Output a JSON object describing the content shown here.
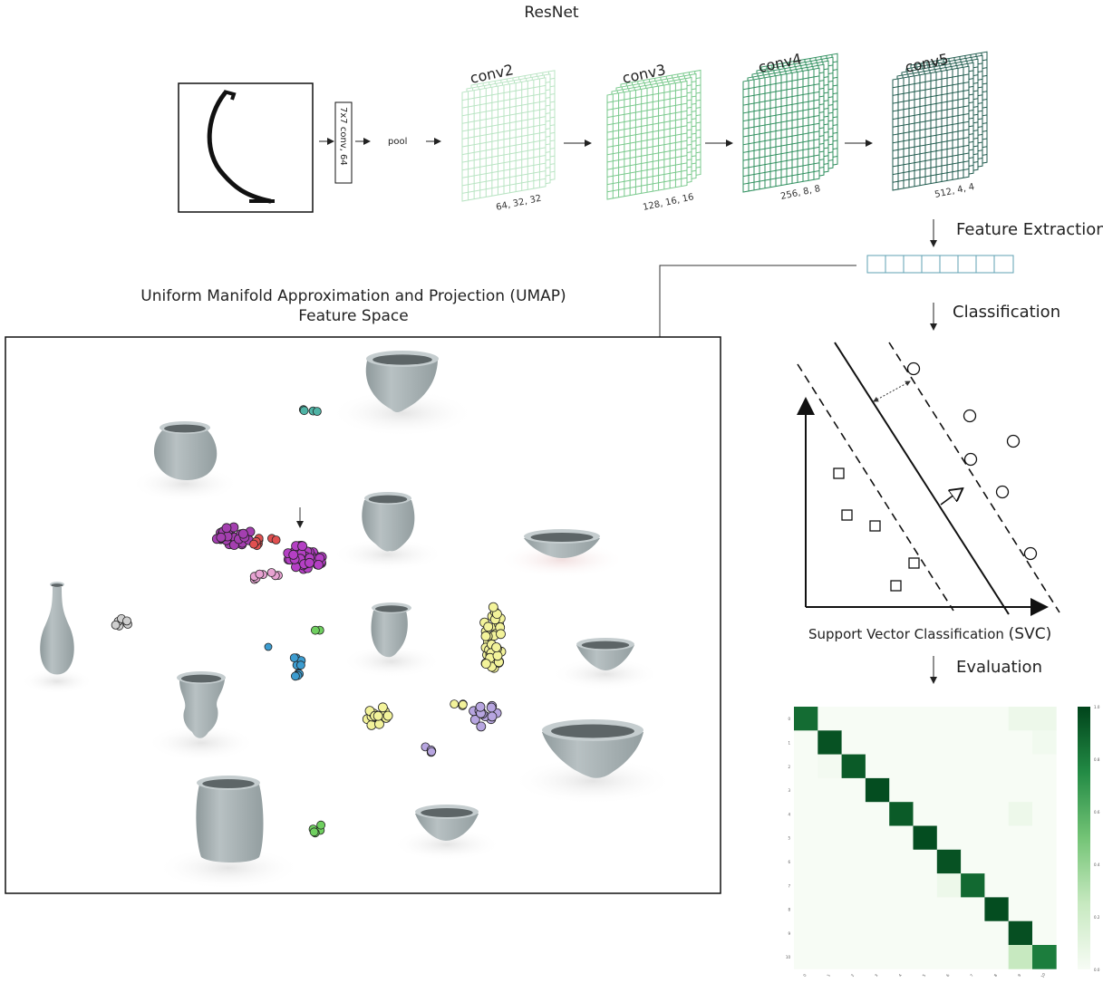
{
  "titles": {
    "resnet": "ResNet",
    "umap_line1": "Uniform Manifold Approximation and Projection (UMAP)",
    "umap_line2": "Feature Space"
  },
  "pipeline": {
    "conv1_label": "7x7 conv, 64",
    "pool_label": "pool",
    "layers": [
      {
        "name": "conv2",
        "shape": "64, 32, 32",
        "color": "#b9e4c3"
      },
      {
        "name": "conv3",
        "shape": "128, 16, 16",
        "color": "#79c98c"
      },
      {
        "name": "conv4",
        "shape": "256, 8, 8",
        "color": "#2f8f5e"
      },
      {
        "name": "conv5",
        "shape": "512, 4, 4",
        "color": "#1f5a4d"
      }
    ]
  },
  "steps": {
    "feature_extraction": "Feature Extraction",
    "classification": "Classification",
    "svc_prefix": "Support  Vector Classification",
    "svc_abbrev": "(SVC)",
    "evaluation": "Evaluation"
  },
  "colors": {
    "vessel": "#a9b3b5",
    "line": "#222222"
  },
  "umap_clusters": [
    {
      "color": "#4fb3a5",
      "n": 4
    },
    {
      "color": "#a43fb0",
      "n": 30
    },
    {
      "color": "#e05050",
      "n": 8
    },
    {
      "color": "#b43fc4",
      "n": 40
    },
    {
      "color": "#e7a3d2",
      "n": 8
    },
    {
      "color": "#cfcfcf",
      "n": 6
    },
    {
      "color": "#6fcf5f",
      "n": 2
    },
    {
      "color": "#3c9cd0",
      "n": 10
    },
    {
      "color": "#f3f39a",
      "n": 40
    },
    {
      "color": "#f3f39a",
      "n": 16
    },
    {
      "color": "#b7a5e0",
      "n": 14
    },
    {
      "color": "#f3f39a",
      "n": 4
    },
    {
      "color": "#b7a5e0",
      "n": 5
    },
    {
      "color": "#6fcf5f",
      "n": 5
    }
  ],
  "chart_data": {
    "type": "heatmap",
    "rows": 11,
    "cols": 11,
    "colormap": "Greens",
    "range": [
      0.0,
      1.0
    ],
    "colorbar_ticks": [
      "1.0",
      "0.8",
      "0.6",
      "0.4",
      "0.2",
      "0.0"
    ],
    "row_tick_labels": [
      "0",
      "1",
      "2",
      "3",
      "4",
      "5",
      "6",
      "7",
      "8",
      "9",
      "10"
    ],
    "col_tick_labels": [
      "0",
      "1",
      "2",
      "3",
      "4",
      "5",
      "6",
      "7",
      "8",
      "9",
      "10"
    ],
    "matrix": [
      [
        0.86,
        0,
        0,
        0,
        0,
        0,
        0,
        0,
        0,
        0.05,
        0.05
      ],
      [
        0,
        0.95,
        0,
        0,
        0,
        0,
        0,
        0,
        0,
        0,
        0.03
      ],
      [
        0,
        0.02,
        0.92,
        0,
        0,
        0,
        0,
        0,
        0,
        0,
        0
      ],
      [
        0,
        0,
        0,
        0.97,
        0,
        0,
        0,
        0,
        0,
        0,
        0
      ],
      [
        0,
        0,
        0,
        0,
        0.92,
        0,
        0,
        0,
        0,
        0.05,
        0
      ],
      [
        0,
        0,
        0,
        0,
        0,
        0.97,
        0,
        0,
        0,
        0,
        0
      ],
      [
        0,
        0,
        0,
        0,
        0,
        0,
        0.95,
        0,
        0,
        0,
        0
      ],
      [
        0,
        0,
        0,
        0,
        0,
        0,
        0.05,
        0.87,
        0,
        0,
        0
      ],
      [
        0,
        0,
        0,
        0,
        0,
        0,
        0,
        0,
        0.97,
        0,
        0
      ],
      [
        0,
        0,
        0,
        0,
        0,
        0,
        0,
        0,
        0,
        0.96,
        0
      ],
      [
        0,
        0,
        0,
        0,
        0,
        0,
        0,
        0,
        0,
        0.25,
        0.8
      ]
    ]
  }
}
